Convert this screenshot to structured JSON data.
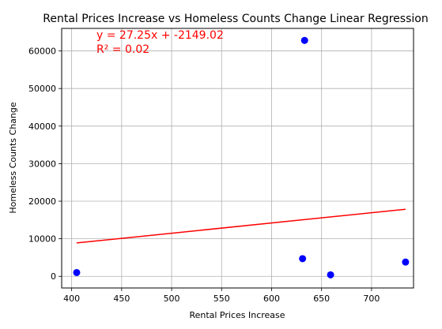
{
  "chart_data": {
    "type": "scatter",
    "title": "Rental Prices Increase vs Homeless Counts Change Linear Regression",
    "xlabel": "Rental Prices Increase",
    "ylabel": "Homeless Counts Change",
    "xlim": [
      390,
      742
    ],
    "ylim": [
      -3100,
      66000
    ],
    "grid": true,
    "xticks": [
      400,
      450,
      500,
      550,
      600,
      650,
      700
    ],
    "yticks": [
      0,
      10000,
      20000,
      30000,
      40000,
      50000,
      60000
    ],
    "series": [
      {
        "type": "scatter",
        "color": "#0000ff",
        "points": [
          {
            "x": 405,
            "y": 1000
          },
          {
            "x": 631,
            "y": 4700
          },
          {
            "x": 633,
            "y": 62800
          },
          {
            "x": 659,
            "y": 400
          },
          {
            "x": 734,
            "y": 3800
          }
        ]
      },
      {
        "type": "line",
        "color": "#ff0000",
        "x": [
          405,
          734
        ],
        "y": [
          8887,
          17853
        ]
      }
    ],
    "annotations": [
      {
        "text": "y = 27.25x + -2149.02",
        "color": "#ff0000"
      },
      {
        "text": "R² = 0.02",
        "color": "#ff0000"
      }
    ]
  }
}
